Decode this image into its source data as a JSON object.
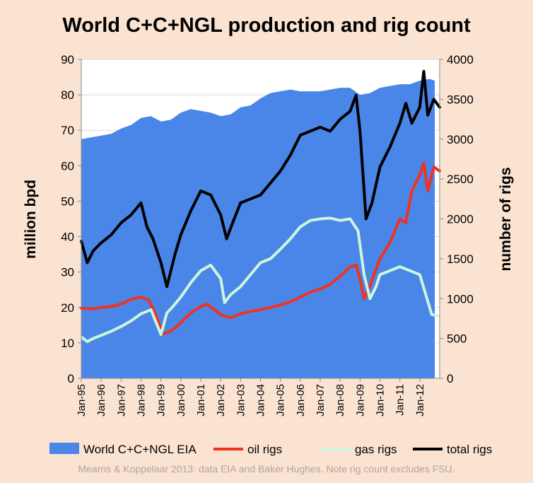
{
  "chart_data": {
    "type": "area",
    "title": "World C+C+NGL production and rig count",
    "y_left_label": "million bpd",
    "y_right_label": "number of rigs",
    "y_left_lim": [
      0,
      90
    ],
    "y_left_ticks": [
      "0",
      "10",
      "20",
      "30",
      "40",
      "50",
      "60",
      "70",
      "80",
      "90"
    ],
    "y_right_lim": [
      0,
      4000
    ],
    "y_right_ticks": [
      "0",
      "500",
      "1000",
      "1500",
      "2000",
      "2500",
      "3000",
      "3500",
      "4000"
    ],
    "x_ticks": [
      "Jan-95",
      "Jan-96",
      "Jan-97",
      "Jan-98",
      "Jan-99",
      "Jan-00",
      "Jan-01",
      "Jan-02",
      "Jan-03",
      "Jan-04",
      "Jan-05",
      "Jan-06",
      "Jan-07",
      "Jan-08",
      "Jan-09",
      "Jan-10",
      "Jan-11",
      "Jan-12"
    ],
    "x_range": [
      1995.0,
      2013.0
    ],
    "grid": true,
    "legend_position": "bottom",
    "series": [
      {
        "name": "World C+C+NGL EIA",
        "kind": "area",
        "axis": "left",
        "color": "#4a86e8",
        "x": [
          1995.0,
          1995.5,
          1996.0,
          1996.5,
          1997.0,
          1997.5,
          1998.0,
          1998.5,
          1999.0,
          1999.5,
          2000.0,
          2000.5,
          2001.0,
          2001.5,
          2002.0,
          2002.5,
          2003.0,
          2003.5,
          2004.0,
          2004.5,
          2005.0,
          2005.5,
          2006.0,
          2006.5,
          2007.0,
          2007.5,
          2008.0,
          2008.5,
          2009.0,
          2009.5,
          2010.0,
          2010.5,
          2011.0,
          2011.5,
          2012.0,
          2012.5,
          2012.75
        ],
        "y": [
          67.5,
          68.0,
          68.5,
          69.0,
          70.5,
          71.5,
          73.5,
          74.0,
          72.5,
          73.0,
          75.0,
          76.0,
          75.5,
          75.0,
          74.0,
          74.5,
          76.5,
          77.0,
          79.0,
          80.5,
          81.0,
          81.5,
          81.0,
          81.0,
          81.0,
          81.5,
          82.0,
          82.0,
          80.0,
          80.5,
          82.0,
          82.5,
          83.0,
          83.0,
          84.0,
          84.5,
          84.0
        ]
      },
      {
        "name": "oil rigs",
        "kind": "line",
        "axis": "right",
        "color": "#ee3322",
        "x": [
          1995.0,
          1995.5,
          1996.0,
          1996.5,
          1997.0,
          1997.5,
          1998.0,
          1998.4,
          1998.8,
          1999.1,
          1999.4,
          1999.8,
          2000.2,
          2000.6,
          2001.0,
          2001.3,
          2001.6,
          2002.0,
          2002.5,
          2003.0,
          2003.5,
          2004.0,
          2004.5,
          2005.0,
          2005.5,
          2006.0,
          2006.5,
          2007.0,
          2007.5,
          2008.0,
          2008.5,
          2008.8,
          2009.0,
          2009.2,
          2009.4,
          2009.7,
          2010.0,
          2010.5,
          2011.0,
          2011.3,
          2011.6,
          2012.0,
          2012.2,
          2012.4,
          2012.7,
          2013.0
        ],
        "y": [
          880,
          870,
          890,
          900,
          930,
          990,
          1020,
          980,
          760,
          560,
          580,
          650,
          750,
          840,
          900,
          930,
          880,
          800,
          760,
          810,
          840,
          860,
          890,
          920,
          960,
          1020,
          1080,
          1120,
          1180,
          1280,
          1400,
          1420,
          1250,
          1000,
          1100,
          1300,
          1500,
          1700,
          2000,
          1950,
          2350,
          2550,
          2700,
          2350,
          2650,
          2600
        ]
      },
      {
        "name": "gas rigs",
        "kind": "line",
        "axis": "right",
        "color": "#ccf5dd",
        "x": [
          1995.0,
          1995.3,
          1995.6,
          1996.0,
          1996.5,
          1997.0,
          1997.5,
          1998.0,
          1998.5,
          1999.0,
          1999.3,
          1999.6,
          2000.0,
          2000.5,
          2001.0,
          2001.5,
          2002.0,
          2002.2,
          2002.5,
          2003.0,
          2003.5,
          2004.0,
          2004.5,
          2005.0,
          2005.5,
          2006.0,
          2006.5,
          2007.0,
          2007.5,
          2008.0,
          2008.5,
          2008.9,
          2009.2,
          2009.5,
          2009.8,
          2010.0,
          2010.5,
          2011.0,
          2011.5,
          2012.0,
          2012.3,
          2012.6,
          2013.0
        ],
        "y": [
          520,
          460,
          500,
          540,
          590,
          650,
          720,
          810,
          860,
          550,
          820,
          900,
          1020,
          1200,
          1350,
          1420,
          1250,
          950,
          1050,
          1150,
          1300,
          1450,
          1500,
          1620,
          1750,
          1900,
          1980,
          2000,
          2010,
          1980,
          2000,
          1850,
          1300,
          1000,
          1150,
          1300,
          1350,
          1400,
          1350,
          1300,
          1050,
          800,
          780
        ]
      },
      {
        "name": "total rigs",
        "kind": "line",
        "axis": "right",
        "color": "#000000",
        "x": [
          1995.0,
          1995.3,
          1995.6,
          1996.0,
          1996.5,
          1997.0,
          1997.5,
          1998.0,
          1998.3,
          1998.6,
          1999.0,
          1999.3,
          1999.7,
          2000.0,
          2000.5,
          2001.0,
          2001.5,
          2002.0,
          2002.3,
          2002.6,
          2003.0,
          2003.5,
          2004.0,
          2004.5,
          2005.0,
          2005.5,
          2006.0,
          2006.5,
          2007.0,
          2007.5,
          2008.0,
          2008.5,
          2008.8,
          2009.0,
          2009.3,
          2009.6,
          2010.0,
          2010.5,
          2011.0,
          2011.3,
          2011.6,
          2012.0,
          2012.2,
          2012.4,
          2012.7,
          2013.0
        ],
        "y": [
          1720,
          1450,
          1600,
          1700,
          1800,
          1950,
          2050,
          2200,
          1900,
          1750,
          1450,
          1150,
          1550,
          1800,
          2100,
          2350,
          2300,
          2050,
          1750,
          1950,
          2200,
          2250,
          2300,
          2450,
          2600,
          2800,
          3050,
          3100,
          3150,
          3100,
          3250,
          3350,
          3550,
          3100,
          2000,
          2200,
          2650,
          2900,
          3200,
          3450,
          3200,
          3400,
          3850,
          3300,
          3500,
          3400
        ]
      }
    ]
  },
  "footnote": "Mearns & Koppelaar 2013: data EIA and Baker Hughes. Note rig count excludes FSU."
}
